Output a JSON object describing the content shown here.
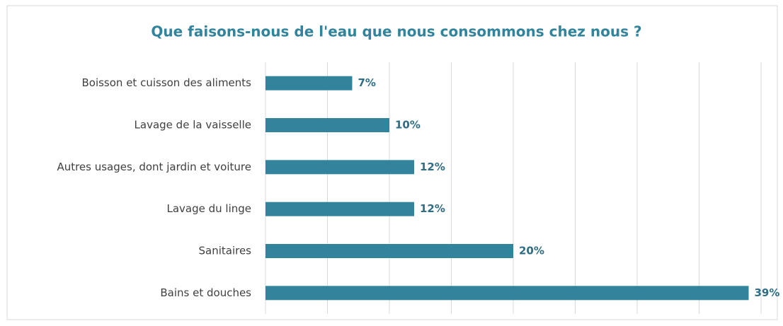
{
  "chart_data": {
    "type": "bar",
    "orientation": "horizontal",
    "title": "Que faisons-nous de l'eau que nous consommons chez nous ?",
    "categories": [
      "Boisson et cuisson des aliments",
      "Lavage de la vaisselle",
      "Autres usages, dont jardin et voiture",
      "Lavage du linge",
      "Sanitaires",
      "Bains et douches"
    ],
    "values": [
      7,
      10,
      12,
      12,
      20,
      39
    ],
    "value_labels": [
      "7%",
      "10%",
      "12%",
      "12%",
      "20%",
      "39%"
    ],
    "color": "#31849b",
    "xlim": [
      0,
      40
    ],
    "xticks": [
      0,
      5,
      10,
      15,
      20,
      25,
      30,
      35,
      40
    ],
    "grid": true
  }
}
